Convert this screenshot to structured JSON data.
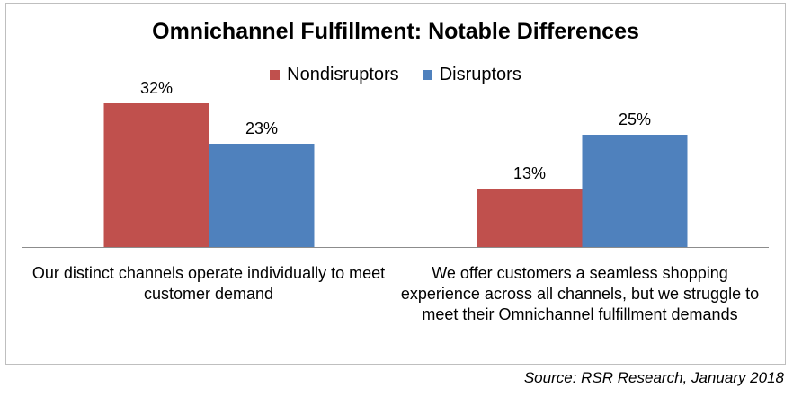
{
  "chart_data": {
    "type": "bar",
    "title": "Omnichannel Fulfillment: Notable Differences",
    "categories": [
      "Our distinct channels operate individually to meet customer demand",
      "We offer customers a seamless shopping experience across all channels, but we struggle to meet their Omnichannel fulfillment demands"
    ],
    "series": [
      {
        "name": "Nondisruptors",
        "values": [
          32,
          13
        ],
        "labels": [
          "32%",
          "13%"
        ],
        "color": "#c0504d"
      },
      {
        "name": "Disruptors",
        "values": [
          23,
          25
        ],
        "labels": [
          "23%",
          "25%"
        ],
        "color": "#4f81bd"
      }
    ],
    "xlabel": "",
    "ylabel": "",
    "ylim": [
      0,
      35
    ],
    "grid": false,
    "legend_position": "top-center",
    "value_labels": true
  },
  "source": "Source: RSR Research, January 2018"
}
